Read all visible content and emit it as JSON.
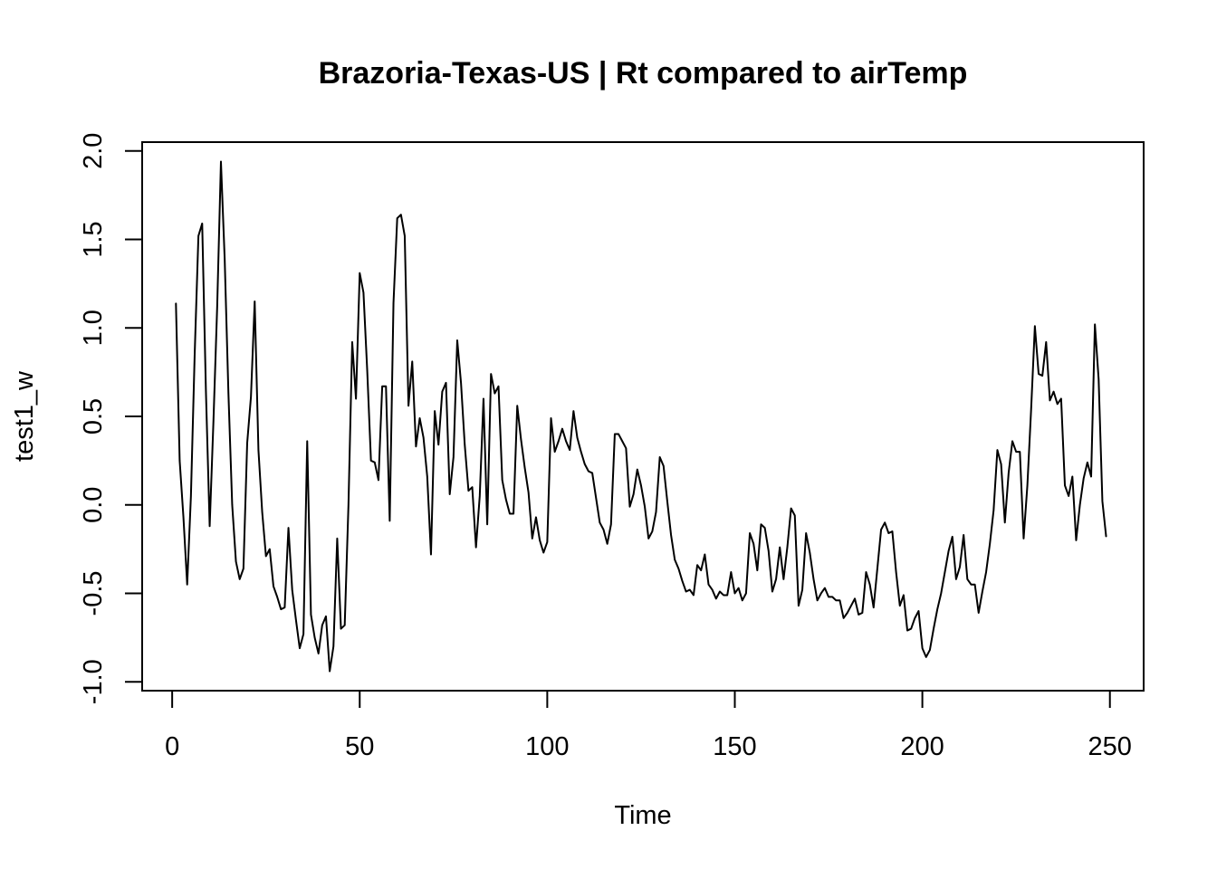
{
  "chart_data": {
    "type": "line",
    "title": "Brazoria-Texas-US | Rt compared to airTemp",
    "xlabel": "Time",
    "ylabel": "test1_w",
    "xlim": [
      -8,
      259
    ],
    "ylim": [
      -1.05,
      2.05
    ],
    "x_ticks": [
      0,
      50,
      100,
      150,
      200,
      250
    ],
    "x_tick_labels": [
      "0",
      "50",
      "100",
      "150",
      "200",
      "250"
    ],
    "y_ticks": [
      -1.0,
      -0.5,
      0.0,
      0.5,
      1.0,
      1.5,
      2.0
    ],
    "y_tick_labels": [
      "-1.0",
      "-0.5",
      "0.0",
      "0.5",
      "1.0",
      "1.5",
      "2.0"
    ],
    "grid": false,
    "series": [
      {
        "color": "#000000",
        "x_start": 1,
        "values": [
          1.14,
          0.25,
          -0.07,
          -0.45,
          0.05,
          0.85,
          1.52,
          1.59,
          0.64,
          -0.12,
          0.47,
          1.12,
          1.94,
          1.39,
          0.63,
          0.0,
          -0.32,
          -0.42,
          -0.36,
          0.35,
          0.61,
          1.15,
          0.31,
          -0.04,
          -0.29,
          -0.25,
          -0.46,
          -0.52,
          -0.59,
          -0.58,
          -0.13,
          -0.48,
          -0.65,
          -0.81,
          -0.73,
          0.36,
          -0.62,
          -0.75,
          -0.84,
          -0.68,
          -0.63,
          -0.94,
          -0.8,
          -0.19,
          -0.7,
          -0.68,
          0.0,
          0.92,
          0.6,
          1.31,
          1.2,
          0.76,
          0.25,
          0.24,
          0.14,
          0.67,
          0.67,
          -0.09,
          1.14,
          1.62,
          1.64,
          1.52,
          0.56,
          0.81,
          0.33,
          0.49,
          0.38,
          0.16,
          -0.28,
          0.53,
          0.34,
          0.64,
          0.69,
          0.06,
          0.27,
          0.93,
          0.69,
          0.34,
          0.08,
          0.1,
          -0.24,
          0.05,
          0.6,
          -0.11,
          0.74,
          0.63,
          0.67,
          0.14,
          0.03,
          -0.05,
          -0.05,
          0.56,
          0.37,
          0.21,
          0.07,
          -0.19,
          -0.07,
          -0.2,
          -0.27,
          -0.21,
          0.49,
          0.3,
          0.36,
          0.43,
          0.36,
          0.31,
          0.53,
          0.38,
          0.3,
          0.23,
          0.19,
          0.18,
          0.04,
          -0.1,
          -0.14,
          -0.22,
          -0.11,
          0.4,
          0.4,
          0.36,
          0.32,
          -0.01,
          0.06,
          0.2,
          0.11,
          -0.01,
          -0.19,
          -0.15,
          -0.04,
          0.27,
          0.22,
          0.02,
          -0.17,
          -0.31,
          -0.36,
          -0.43,
          -0.49,
          -0.48,
          -0.51,
          -0.34,
          -0.37,
          -0.28,
          -0.45,
          -0.48,
          -0.53,
          -0.49,
          -0.51,
          -0.51,
          -0.38,
          -0.5,
          -0.47,
          -0.54,
          -0.5,
          -0.16,
          -0.22,
          -0.37,
          -0.11,
          -0.13,
          -0.26,
          -0.49,
          -0.42,
          -0.24,
          -0.42,
          -0.24,
          -0.02,
          -0.06,
          -0.57,
          -0.48,
          -0.16,
          -0.27,
          -0.42,
          -0.54,
          -0.5,
          -0.47,
          -0.52,
          -0.52,
          -0.54,
          -0.54,
          -0.64,
          -0.61,
          -0.57,
          -0.53,
          -0.62,
          -0.61,
          -0.38,
          -0.45,
          -0.58,
          -0.36,
          -0.14,
          -0.1,
          -0.16,
          -0.15,
          -0.38,
          -0.57,
          -0.51,
          -0.71,
          -0.7,
          -0.64,
          -0.6,
          -0.81,
          -0.86,
          -0.82,
          -0.7,
          -0.59,
          -0.5,
          -0.38,
          -0.26,
          -0.18,
          -0.42,
          -0.35,
          -0.17,
          -0.42,
          -0.45,
          -0.45,
          -0.61,
          -0.49,
          -0.38,
          -0.22,
          -0.03,
          0.31,
          0.23,
          -0.1,
          0.18,
          0.36,
          0.3,
          0.3,
          -0.19,
          0.11,
          0.54,
          1.01,
          0.74,
          0.73,
          0.92,
          0.59,
          0.64,
          0.57,
          0.6,
          0.11,
          0.05,
          0.16,
          -0.2,
          0.0,
          0.15,
          0.24,
          0.16,
          1.02,
          0.71,
          0.02,
          -0.18
        ]
      }
    ]
  }
}
